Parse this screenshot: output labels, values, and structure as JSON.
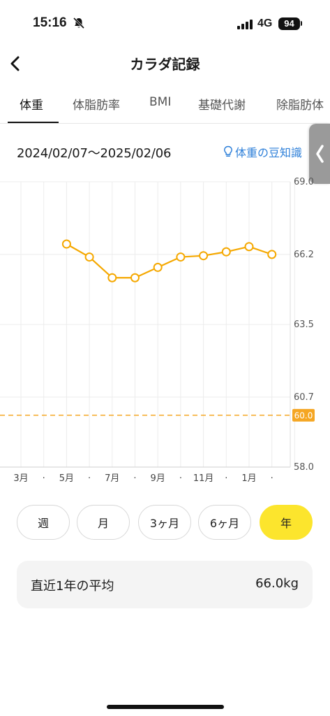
{
  "status": {
    "time": "15:16",
    "network": "4G",
    "battery": "94"
  },
  "nav": {
    "title": "カラダ記録"
  },
  "tabs": [
    {
      "label": "体重",
      "active": true
    },
    {
      "label": "体脂肪率"
    },
    {
      "label": "BMI"
    },
    {
      "label": "基礎代謝"
    },
    {
      "label": "除脂肪体"
    }
  ],
  "range": {
    "dates": "2024/02/07〜2025/02/06",
    "tip": "体重の豆知識"
  },
  "chart_data": {
    "type": "line",
    "y_ticks": [
      "69.0",
      "66.2",
      "63.5",
      "60.7",
      "58.0"
    ],
    "ylim": [
      58.0,
      69.0
    ],
    "x_labels": [
      "3月",
      "·",
      "5月",
      "·",
      "7月",
      "·",
      "9月",
      "·",
      "11月",
      "·",
      "1月",
      "·"
    ],
    "categories": [
      "2024-02",
      "2024-03",
      "2024-04",
      "2024-05",
      "2024-06",
      "2024-07",
      "2024-08",
      "2024-09",
      "2024-10",
      "2024-11",
      "2024-12",
      "2025-01",
      "2025-02"
    ],
    "values": [
      null,
      null,
      66.6,
      66.1,
      65.3,
      65.3,
      65.7,
      66.1,
      66.15,
      66.3,
      66.5,
      66.2,
      null
    ],
    "target": {
      "value": 60.0,
      "label": "60.0"
    },
    "line_color": "#f5a800",
    "target_color": "#f5a623",
    "grid": true
  },
  "period": {
    "buttons": [
      {
        "label": "週"
      },
      {
        "label": "月"
      },
      {
        "label": "3ヶ月"
      },
      {
        "label": "6ヶ月"
      },
      {
        "label": "年",
        "active": true
      }
    ]
  },
  "average": {
    "label": "直近1年の平均",
    "value": "66.0kg"
  },
  "colors": {
    "accent": "#fce52d",
    "link": "#2f80d9"
  }
}
